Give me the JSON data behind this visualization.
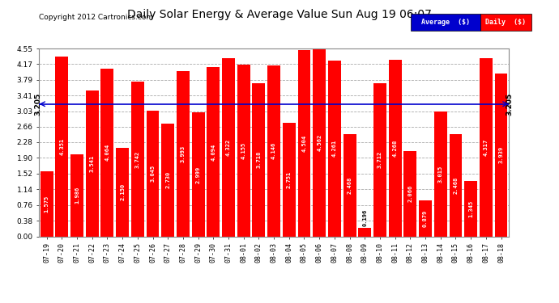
{
  "title": "Daily Solar Energy & Average Value Sun Aug 19 06:07",
  "copyright": "Copyright 2012 Cartronics.com",
  "average_value": 3.205,
  "average_label": "3.205",
  "bar_color": "#FF0000",
  "average_line_color": "#0000CD",
  "background_color": "#FFFFFF",
  "plot_bg_color": "#FFFFFF",
  "categories": [
    "07-19",
    "07-20",
    "07-21",
    "07-22",
    "07-23",
    "07-24",
    "07-25",
    "07-26",
    "07-27",
    "07-28",
    "07-29",
    "07-30",
    "07-31",
    "08-01",
    "08-02",
    "08-03",
    "08-04",
    "08-05",
    "08-06",
    "08-07",
    "08-08",
    "08-09",
    "08-10",
    "08-11",
    "08-12",
    "08-13",
    "08-14",
    "08-15",
    "08-16",
    "08-17",
    "08-18"
  ],
  "values": [
    1.575,
    4.351,
    1.986,
    3.541,
    4.064,
    2.15,
    3.742,
    3.045,
    2.73,
    3.993,
    2.999,
    4.094,
    4.322,
    4.155,
    3.718,
    4.146,
    2.751,
    4.504,
    4.562,
    4.261,
    2.468,
    0.196,
    3.712,
    4.268,
    2.066,
    0.879,
    3.015,
    2.468,
    1.345,
    4.317,
    3.939
  ],
  "yticks": [
    0.0,
    0.38,
    0.76,
    1.14,
    1.52,
    1.9,
    2.28,
    2.66,
    3.03,
    3.41,
    3.79,
    4.17,
    4.55
  ],
  "ylim": [
    0,
    4.55
  ],
  "grid_color": "#AAAAAA",
  "legend_avg_color": "#0000CD",
  "legend_daily_color": "#FF0000",
  "legend_text_color": "#FFFFFF"
}
